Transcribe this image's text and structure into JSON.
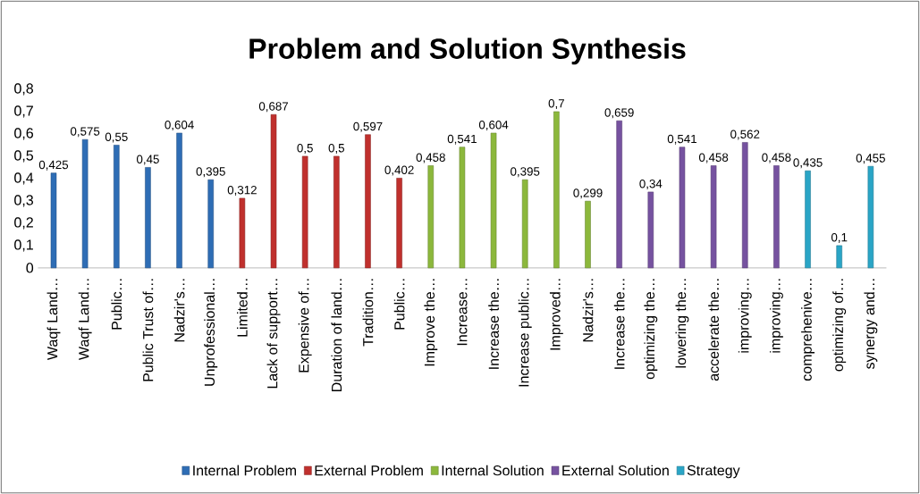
{
  "chart_data": {
    "type": "bar",
    "title": "Problem and Solution Synthesis",
    "categories": [
      "Waqf Land…",
      "Waqf Land…",
      "Public…",
      "Public Trust of…",
      "Nadzir's…",
      "Unprofessional…",
      "Limited…",
      "Lack of support…",
      "Expensive of…",
      "Duration of land…",
      "Tradition…",
      "Public…",
      "Improve the…",
      "Increase…",
      "Increase the…",
      "Increase public…",
      "Improved…",
      "Nadzir's…",
      "Increase the…",
      "optimizing the…",
      "lowering the…",
      "accelerate the…",
      "improving…",
      "improving…",
      "comprehenive…",
      "optimizing of…",
      "synergy and…"
    ],
    "series": [
      {
        "name": "Internal Problem",
        "color": "#2e6db5",
        "values": [
          0.425,
          0.575,
          0.55,
          0.45,
          0.604,
          0.395,
          null,
          null,
          null,
          null,
          null,
          null,
          null,
          null,
          null,
          null,
          null,
          null,
          null,
          null,
          null,
          null,
          null,
          null,
          null,
          null,
          null
        ],
        "value_labels": [
          "0,425",
          "0,575",
          "0,55",
          "0,45",
          "0,604",
          "0,395",
          null,
          null,
          null,
          null,
          null,
          null,
          null,
          null,
          null,
          null,
          null,
          null,
          null,
          null,
          null,
          null,
          null,
          null,
          null,
          null,
          null
        ]
      },
      {
        "name": "External Problem",
        "color": "#c0302d",
        "values": [
          null,
          null,
          null,
          null,
          null,
          null,
          0.312,
          0.687,
          0.5,
          0.5,
          0.597,
          0.402,
          null,
          null,
          null,
          null,
          null,
          null,
          null,
          null,
          null,
          null,
          null,
          null,
          null,
          null,
          null
        ],
        "value_labels": [
          null,
          null,
          null,
          null,
          null,
          null,
          "0,312",
          "0,687",
          "0,5",
          "0,5",
          "0,597",
          "0,402",
          null,
          null,
          null,
          null,
          null,
          null,
          null,
          null,
          null,
          null,
          null,
          null,
          null,
          null,
          null
        ]
      },
      {
        "name": "Internal Solution",
        "color": "#8cb83c",
        "values": [
          null,
          null,
          null,
          null,
          null,
          null,
          null,
          null,
          null,
          null,
          null,
          null,
          0.458,
          0.541,
          0.604,
          0.395,
          0.7,
          0.299,
          null,
          null,
          null,
          null,
          null,
          null,
          null,
          null,
          null
        ],
        "value_labels": [
          null,
          null,
          null,
          null,
          null,
          null,
          null,
          null,
          null,
          null,
          null,
          null,
          "0,458",
          "0,541",
          "0,604",
          "0,395",
          "0,7",
          "0,299",
          null,
          null,
          null,
          null,
          null,
          null,
          null,
          null,
          null
        ]
      },
      {
        "name": "External Solution",
        "color": "#7652a0",
        "values": [
          null,
          null,
          null,
          null,
          null,
          null,
          null,
          null,
          null,
          null,
          null,
          null,
          null,
          null,
          null,
          null,
          null,
          null,
          0.659,
          0.34,
          0.541,
          0.458,
          0.562,
          0.458,
          null,
          null,
          null
        ],
        "value_labels": [
          null,
          null,
          null,
          null,
          null,
          null,
          null,
          null,
          null,
          null,
          null,
          null,
          null,
          null,
          null,
          null,
          null,
          null,
          "0,659",
          "0,34",
          "0,541",
          "0,458",
          "0,562",
          "0,458",
          null,
          null,
          null
        ]
      },
      {
        "name": "Strategy",
        "color": "#2aa5c6",
        "values": [
          null,
          null,
          null,
          null,
          null,
          null,
          null,
          null,
          null,
          null,
          null,
          null,
          null,
          null,
          null,
          null,
          null,
          null,
          null,
          null,
          null,
          null,
          null,
          null,
          0.435,
          0.1,
          0.455
        ],
        "value_labels": [
          null,
          null,
          null,
          null,
          null,
          null,
          null,
          null,
          null,
          null,
          null,
          null,
          null,
          null,
          null,
          null,
          null,
          null,
          null,
          null,
          null,
          null,
          null,
          null,
          "0,435",
          "0,1",
          "0,455"
        ]
      }
    ],
    "ylim": [
      0,
      0.8
    ],
    "yticks": [
      0,
      {
        "value": 0.1,
        "label": "0,1"
      },
      {
        "value": 0.2,
        "label": "0,2"
      },
      {
        "value": 0.3,
        "label": "0,3"
      },
      {
        "value": 0.4,
        "label": "0,4"
      },
      {
        "value": 0.5,
        "label": "0,5"
      },
      {
        "value": 0.6,
        "label": "0,6"
      },
      {
        "value": 0.7,
        "label": "0,7"
      },
      {
        "value": 0.8,
        "label": "0,8"
      }
    ],
    "legend": "bottom"
  }
}
